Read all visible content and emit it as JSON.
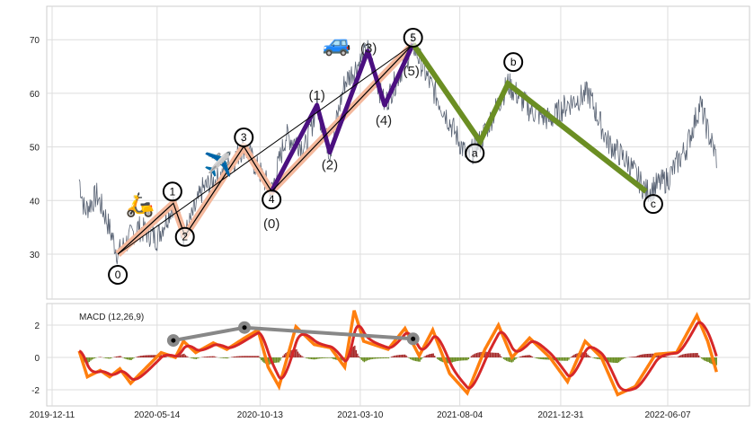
{
  "chart_data": [
    {
      "type": "line",
      "title": "",
      "ylim": [
        21.6,
        76.2
      ],
      "yticks": [
        30,
        40,
        50,
        60,
        70
      ],
      "grid": true,
      "price": [
        [
          "2020-01-20",
          44
        ],
        [
          "2020-01-28",
          38
        ],
        [
          "2020-02-15",
          41
        ],
        [
          "2020-02-28",
          37
        ],
        [
          "2020-03-17",
          30
        ],
        [
          "2020-04-15",
          35
        ],
        [
          "2020-05-14",
          33
        ],
        [
          "2020-06-07",
          39.5
        ],
        [
          "2020-06-24",
          33.4
        ],
        [
          "2020-07-20",
          42
        ],
        [
          "2020-08-20",
          45
        ],
        [
          "2020-09-19",
          50.1
        ],
        [
          "2020-10-30",
          41.7
        ],
        [
          "2020-11-20",
          52
        ],
        [
          "2020-12-20",
          50
        ],
        [
          "2021-01-05",
          57.8
        ],
        [
          "2021-01-24",
          49
        ],
        [
          "2021-02-15",
          62
        ],
        [
          "2021-03-21",
          67.9
        ],
        [
          "2021-04-15",
          57.8
        ],
        [
          "2021-05-27",
          69.2
        ],
        [
          "2021-06-20",
          62
        ],
        [
          "2021-07-15",
          56
        ],
        [
          "2021-08-15",
          48
        ],
        [
          "2021-09-03",
          51
        ],
        [
          "2021-10-14",
          61.8
        ],
        [
          "2021-11-15",
          57
        ],
        [
          "2021-12-15",
          55
        ],
        [
          "2022-01-10",
          58
        ],
        [
          "2022-02-10",
          60
        ],
        [
          "2022-03-10",
          51
        ],
        [
          "2022-04-10",
          47
        ],
        [
          "2022-05-06",
          41.7
        ],
        [
          "2022-06-07",
          44
        ],
        [
          "2022-07-05",
          50
        ],
        [
          "2022-07-25",
          58
        ],
        [
          "2022-08-05",
          53
        ],
        [
          "2022-08-18",
          48
        ]
      ],
      "impulse_waves": [
        {
          "label": "0",
          "date": "2020-03-17",
          "value": 30
        },
        {
          "label": "1",
          "date": "2020-06-07",
          "value": 39.5
        },
        {
          "label": "2",
          "date": "2020-06-24",
          "value": 33.4
        },
        {
          "label": "3",
          "date": "2020-09-19",
          "value": 50.1
        },
        {
          "label": "4",
          "date": "2020-10-30",
          "value": 41.7
        },
        {
          "label": "5",
          "date": "2021-05-27",
          "value": 69.2
        }
      ],
      "sub_waves": [
        {
          "label": "(0)",
          "date": "2020-10-30",
          "value": 41.7
        },
        {
          "label": "(1)",
          "date": "2021-01-05",
          "value": 57.8
        },
        {
          "label": "(2)",
          "date": "2021-01-24",
          "value": 49
        },
        {
          "label": "(3)",
          "date": "2021-03-21",
          "value": 67.9
        },
        {
          "label": "(4)",
          "date": "2021-04-15",
          "value": 57.8
        },
        {
          "label": "(5)",
          "date": "2021-05-27",
          "value": 69.2
        }
      ],
      "corrective_waves": [
        {
          "label": "",
          "date": "2021-05-27",
          "value": 69.2
        },
        {
          "label": "a",
          "date": "2021-09-03",
          "value": 51
        },
        {
          "label": "b",
          "date": "2021-10-14",
          "value": 61.8
        },
        {
          "label": "c",
          "date": "2022-05-06",
          "value": 41.7
        }
      ],
      "annotations": [
        {
          "icon": "scooter-icon",
          "glyph": "🛵",
          "date": "2020-05-02",
          "value": 39.5
        },
        {
          "icon": "airplane-icon",
          "glyph": "✈️",
          "date": "2020-08-12",
          "value": 47
        },
        {
          "icon": "car-icon",
          "glyph": "🚙",
          "date": "2021-02-25",
          "value": 69.5
        }
      ],
      "colors": {
        "price": "#5a6475",
        "impulse_band": "#f4b89c",
        "impulse_line": "#000000",
        "sub_wave": "#4b1080",
        "corrective": "#6b8e23"
      }
    },
    {
      "type": "line",
      "title": "MACD (12,26,9)",
      "ylim": [
        -2.6,
        3.3
      ],
      "yticks": [
        -2,
        0,
        2
      ],
      "xticks": [
        "2019-12-11",
        "2020-05-14",
        "2020-10-13",
        "2021-03-10",
        "2021-08-04",
        "2021-12-31",
        "2022-06-07"
      ],
      "macd": [
        [
          "2020-01-20",
          0.4
        ],
        [
          "2020-02-01",
          -1.2
        ],
        [
          "2020-02-20",
          -0.8
        ],
        [
          "2020-03-05",
          -1.2
        ],
        [
          "2020-03-20",
          -0.7
        ],
        [
          "2020-04-05",
          -1.6
        ],
        [
          "2020-05-01",
          -0.5
        ],
        [
          "2020-05-20",
          0.3
        ],
        [
          "2020-06-10",
          0
        ],
        [
          "2020-06-22",
          1.0
        ],
        [
          "2020-07-10",
          0.3
        ],
        [
          "2020-08-05",
          0.9
        ],
        [
          "2020-08-25",
          0.5
        ],
        [
          "2020-09-20",
          1.2
        ],
        [
          "2020-10-10",
          1.7
        ],
        [
          "2020-10-25",
          -0.6
        ],
        [
          "2020-11-10",
          -1.8
        ],
        [
          "2020-12-05",
          1.9
        ],
        [
          "2021-01-01",
          0.8
        ],
        [
          "2021-01-25",
          0.6
        ],
        [
          "2021-02-15",
          -0.6
        ],
        [
          "2021-03-01",
          2.9
        ],
        [
          "2021-03-15",
          1.0
        ],
        [
          "2021-04-20",
          0.5
        ],
        [
          "2021-05-15",
          1.8
        ],
        [
          "2021-06-05",
          0.1
        ],
        [
          "2021-06-25",
          1.7
        ],
        [
          "2021-07-20",
          -1.0
        ],
        [
          "2021-08-15",
          -2.2
        ],
        [
          "2021-09-10",
          0.5
        ],
        [
          "2021-09-30",
          2.0
        ],
        [
          "2021-10-20",
          0.0
        ],
        [
          "2021-11-15",
          1.2
        ],
        [
          "2021-12-15",
          0.0
        ],
        [
          "2022-01-10",
          -1.5
        ],
        [
          "2022-02-05",
          1.0
        ],
        [
          "2022-03-01",
          0.0
        ],
        [
          "2022-03-25",
          -2.3
        ],
        [
          "2022-04-20",
          -1.8
        ],
        [
          "2022-05-20",
          0.2
        ],
        [
          "2022-06-20",
          0.3
        ],
        [
          "2022-07-20",
          2.6
        ],
        [
          "2022-08-05",
          1.0
        ],
        [
          "2022-08-18",
          -0.9
        ]
      ],
      "divergence_line": [
        [
          "2020-06-07",
          1.05
        ],
        [
          "2020-09-20",
          1.85
        ],
        [
          "2021-05-27",
          1.15
        ]
      ],
      "colors": {
        "macd": "#ff7f0e",
        "signal": "#d62728",
        "hist_pos": "#a52a2a",
        "hist_neg": "#6b8e23",
        "divergence": "#888888"
      }
    }
  ]
}
